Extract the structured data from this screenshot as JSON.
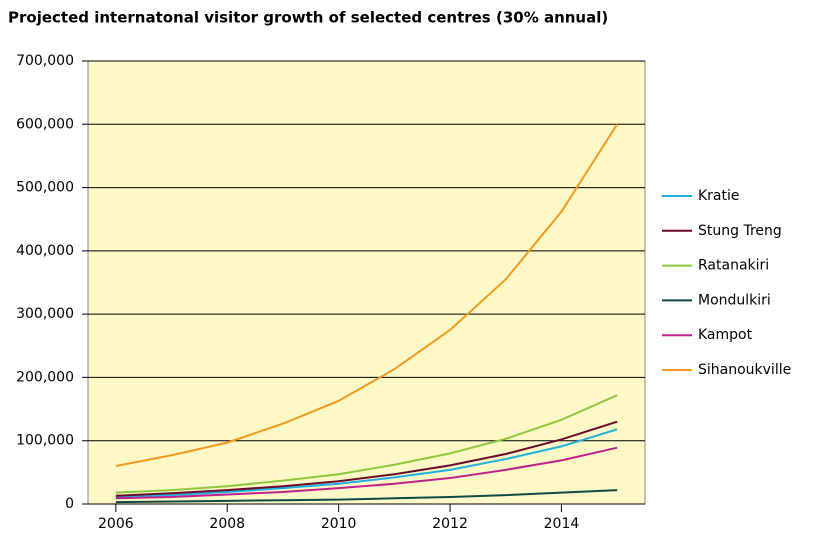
{
  "chart_data": {
    "type": "line",
    "title": "Projected internatonal visitor growth of selected centres (30% annual)",
    "x": [
      2006,
      2007,
      2008,
      2009,
      2010,
      2011,
      2012,
      2013,
      2014,
      2015
    ],
    "xlim": [
      2005.5,
      2015.5
    ],
    "xticks": [
      2006,
      2008,
      2010,
      2012,
      2014
    ],
    "ylim": [
      0,
      700000
    ],
    "yticks": [
      0,
      {
        "value": 100000,
        "label": "100,000"
      },
      {
        "value": 200000,
        "label": "200,000"
      },
      {
        "value": 300000,
        "label": "300,000"
      },
      {
        "value": 400000,
        "label": "400,000"
      },
      {
        "value": 500000,
        "label": "500,000"
      },
      {
        "value": 600000,
        "label": "600,000"
      },
      {
        "value": 700000,
        "label": "700,000"
      }
    ],
    "grid": true,
    "legend": "right",
    "series": [
      {
        "name": "Kratie",
        "color": "#1fb0e0",
        "values": [
          11000,
          14000,
          19000,
          25000,
          32000,
          42000,
          54000,
          71000,
          91000,
          118000
        ]
      },
      {
        "name": "Stung Treng",
        "color": "#6b0a2a",
        "values": [
          13000,
          17000,
          22000,
          28000,
          36000,
          47000,
          61000,
          79000,
          102000,
          130000
        ]
      },
      {
        "name": "Ratanakiri",
        "color": "#8dc63f",
        "values": [
          18000,
          22000,
          28000,
          37000,
          47000,
          62000,
          80000,
          103000,
          133000,
          172000
        ]
      },
      {
        "name": "Mondulkiri",
        "color": "#0d4a45",
        "values": [
          3000,
          4000,
          5000,
          6000,
          7000,
          9000,
          11000,
          14000,
          18000,
          22000
        ]
      },
      {
        "name": "Kampot",
        "color": "#c0218f",
        "values": [
          9000,
          11000,
          15000,
          19000,
          25000,
          32000,
          41000,
          54000,
          69000,
          89000
        ]
      },
      {
        "name": "Sihanoukville",
        "color": "#f39a1e",
        "values": [
          60000,
          77000,
          97000,
          127000,
          163000,
          213000,
          275000,
          355000,
          462000,
          600000
        ]
      }
    ]
  }
}
